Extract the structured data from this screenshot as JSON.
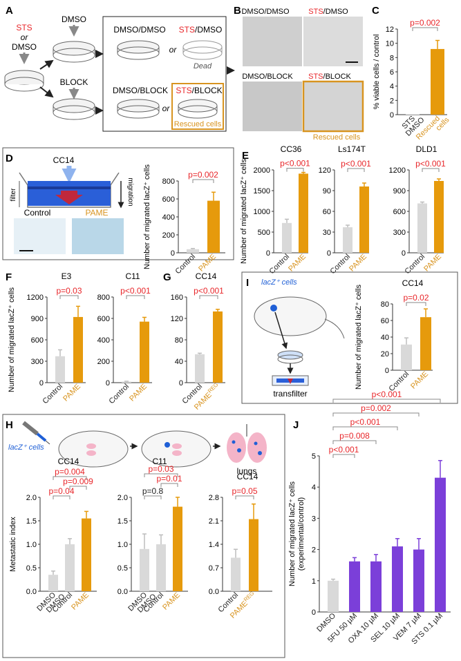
{
  "colors": {
    "control": "#d9d9d9",
    "pame": "#e69a0c",
    "purple": "#7b3fd9",
    "red": "#e8262a",
    "orange": "#d89420",
    "blue": "#1f5fd6",
    "pink": "#f4b4c8"
  },
  "panels": {
    "A": {
      "letter": "A",
      "sts_or_dmso": [
        "STS",
        "or",
        "DMSO"
      ],
      "dmso": "DMSO",
      "block": "BLOCK",
      "dmso_dmso": "DMSO/DMSO",
      "sts_dmso_a": "STS",
      "sts_dmso_b": "/DMSO",
      "dmso_block": "DMSO/BLOCK",
      "sts_block_a": "STS",
      "sts_block_b": "/BLOCK",
      "or": "or",
      "dead": "Dead",
      "rescued": "Rescued cells"
    },
    "B": {
      "letter": "B",
      "dmso_dmso": "DMSO/DMSO",
      "sts_dmso_a": "STS",
      "sts_dmso_b": "/DMSO",
      "dmso_block": "DMSO/BLOCK",
      "sts_block_a": "STS",
      "sts_block_b": "/BLOCK",
      "rescued": "Rescued cells"
    },
    "D": {
      "letter": "D",
      "cc14": "CC14",
      "filter": "filter",
      "migration": "migration",
      "control": "Control",
      "pame": "PAME"
    },
    "F": {
      "letter": "F"
    },
    "G": {
      "letter": "G"
    },
    "E": {
      "letter": "E"
    },
    "I": {
      "letter": "I",
      "cells": "lacZ⁺ cells",
      "transfilter": "transfilter"
    },
    "H": {
      "letter": "H",
      "cells": "lacZ⁺ cells",
      "lungs": "lungs"
    },
    "J": {
      "letter": "J"
    }
  },
  "chart_data": [
    {
      "id": "C",
      "type": "bar",
      "ylabel": "% viable cells / control",
      "ylim": [
        0,
        12
      ],
      "yticks": [
        0,
        2,
        4,
        6,
        8,
        10,
        12
      ],
      "categories": [
        "STS DMSO",
        "Rescued cells"
      ],
      "cat_lines": [
        [
          "STS",
          "DMSO"
        ],
        [
          "Rescued",
          "cells"
        ]
      ],
      "values": [
        0.05,
        9.2
      ],
      "errors": [
        0,
        1.2
      ],
      "colors": [
        "#d9d9d9",
        "#e69a0c"
      ],
      "label_colors": [
        "#222222",
        "#d89420"
      ],
      "comparisons": [
        {
          "a": 0,
          "b": 1,
          "text": "p=0.002"
        }
      ]
    },
    {
      "id": "D",
      "type": "bar",
      "ylabel": "Number of migrated lacZ⁺ cells",
      "ylim": [
        0,
        800
      ],
      "yticks": [
        0,
        200,
        400,
        600,
        800
      ],
      "categories": [
        "Control",
        "PAME"
      ],
      "values": [
        40,
        580
      ],
      "errors": [
        8,
        95
      ],
      "colors": [
        "#d9d9d9",
        "#e69a0c"
      ],
      "label_colors": [
        "#222222",
        "#d89420"
      ],
      "comparisons": [
        {
          "a": 0,
          "b": 1,
          "text": "p=0.002"
        }
      ]
    },
    {
      "id": "E1",
      "type": "bar",
      "title": "CC36",
      "ylabel": "Number of migrated lacZ⁺ cells",
      "ylim": [
        0,
        2000
      ],
      "yticks": [
        0,
        500,
        1000,
        1500,
        2000
      ],
      "categories": [
        "Control",
        "PAME"
      ],
      "values": [
        720,
        1910
      ],
      "errors": [
        90,
        30
      ],
      "colors": [
        "#d9d9d9",
        "#e69a0c"
      ],
      "label_colors": [
        "#222222",
        "#d89420"
      ],
      "comparisons": [
        {
          "a": 0,
          "b": 1,
          "text": "p<0.001"
        }
      ]
    },
    {
      "id": "E2",
      "type": "bar",
      "title": "Ls174T",
      "ylim": [
        0,
        120
      ],
      "yticks": [
        0,
        30,
        60,
        90,
        120
      ],
      "categories": [
        "Control",
        "PAME"
      ],
      "values": [
        37,
        96
      ],
      "errors": [
        3,
        5
      ],
      "colors": [
        "#d9d9d9",
        "#e69a0c"
      ],
      "label_colors": [
        "#222222",
        "#d89420"
      ],
      "comparisons": [
        {
          "a": 0,
          "b": 1,
          "text": "p<0.001"
        }
      ]
    },
    {
      "id": "E3",
      "type": "bar",
      "title": "DLD1",
      "ylim": [
        0,
        1200
      ],
      "yticks": [
        0,
        300,
        600,
        900,
        1200
      ],
      "categories": [
        "Control",
        "PAME"
      ],
      "values": [
        715,
        1040
      ],
      "errors": [
        20,
        30
      ],
      "colors": [
        "#d9d9d9",
        "#e69a0c"
      ],
      "label_colors": [
        "#222222",
        "#d89420"
      ],
      "comparisons": [
        {
          "a": 0,
          "b": 1,
          "text": "p<0.001"
        }
      ]
    },
    {
      "id": "F1",
      "type": "bar",
      "title": "E3",
      "ylabel": "Number of migrated lacZ⁺ cells",
      "ylim": [
        0,
        1200
      ],
      "yticks": [
        0,
        300,
        600,
        900,
        1200
      ],
      "categories": [
        "Control",
        "PAME"
      ],
      "values": [
        370,
        920
      ],
      "errors": [
        90,
        150
      ],
      "colors": [
        "#d9d9d9",
        "#e69a0c"
      ],
      "label_colors": [
        "#222222",
        "#d89420"
      ],
      "comparisons": [
        {
          "a": 0,
          "b": 1,
          "text": "p=0.03"
        }
      ]
    },
    {
      "id": "F2",
      "type": "bar",
      "title": "C11",
      "ylim": [
        0,
        800
      ],
      "yticks": [
        0,
        200,
        400,
        600,
        800
      ],
      "categories": [
        "Control",
        "PAME"
      ],
      "values": [
        10,
        570
      ],
      "errors": [
        3,
        40
      ],
      "colors": [
        "#d9d9d9",
        "#e69a0c"
      ],
      "label_colors": [
        "#222222",
        "#d89420"
      ],
      "comparisons": [
        {
          "a": 0,
          "b": 1,
          "text": "p<0.001"
        }
      ]
    },
    {
      "id": "G",
      "type": "bar",
      "title": "CC14",
      "ylim": [
        0,
        160
      ],
      "yticks": [
        0,
        40,
        80,
        120,
        160
      ],
      "categories": [
        "Control",
        "PAME REG"
      ],
      "cat_lines": [
        [
          "Control"
        ],
        [
          "PAME",
          "REG"
        ]
      ],
      "values": [
        53,
        133
      ],
      "errors": [
        2,
        4
      ],
      "colors": [
        "#d9d9d9",
        "#e69a0c"
      ],
      "label_colors": [
        "#222222",
        "#d89420"
      ],
      "comparisons": [
        {
          "a": 0,
          "b": 1,
          "text": "p<0.001"
        }
      ]
    },
    {
      "id": "I",
      "type": "bar",
      "title": "CC14",
      "ylabel": "Number of migrated lacZ⁺ cells",
      "ylim": [
        0,
        80
      ],
      "yticks": [
        0,
        20,
        40,
        60,
        80
      ],
      "categories": [
        "Control",
        "PAME"
      ],
      "values": [
        31,
        64
      ],
      "errors": [
        8,
        10
      ],
      "colors": [
        "#d9d9d9",
        "#e69a0c"
      ],
      "label_colors": [
        "#222222",
        "#d89420"
      ],
      "comparisons": [
        {
          "a": 0,
          "b": 1,
          "text": "p=0.02"
        }
      ]
    },
    {
      "id": "H1",
      "type": "bar",
      "title": "CC14",
      "ylabel": "Metastatic index",
      "ylim": [
        0,
        2.0
      ],
      "yticks": [
        0,
        0.5,
        1.0,
        1.5,
        2.0
      ],
      "tick_decimals": 1,
      "categories": [
        "DMSO DMSO",
        "Control",
        "PAME"
      ],
      "cat_lines": [
        [
          "DMSO",
          "DMSO"
        ],
        [
          "Control"
        ],
        [
          "PAME"
        ]
      ],
      "values": [
        0.35,
        1.0,
        1.55
      ],
      "errors": [
        0.08,
        0.12,
        0.15
      ],
      "colors": [
        "#d9d9d9",
        "#d9d9d9",
        "#e69a0c"
      ],
      "label_colors": [
        "#222222",
        "#222222",
        "#d89420"
      ],
      "comparisons": [
        {
          "a": 0,
          "b": 1,
          "text": "p=0.04",
          "color": "#e8262a"
        },
        {
          "a": 1,
          "b": 2,
          "text": "p=0.009",
          "color": "#e8262a"
        },
        {
          "a": 0,
          "b": 2,
          "text": "p=0.004",
          "color": "#e8262a"
        }
      ]
    },
    {
      "id": "H2",
      "type": "bar",
      "title": "C11",
      "ylim": [
        0,
        2.0
      ],
      "yticks": [
        0,
        0.5,
        1.0,
        1.5,
        2.0
      ],
      "tick_decimals": 1,
      "categories": [
        "DMSO DMSO",
        "Control",
        "PAME"
      ],
      "cat_lines": [
        [
          "DMSO",
          "DMSO"
        ],
        [
          "Control"
        ],
        [
          "PAME"
        ]
      ],
      "values": [
        0.9,
        1.0,
        1.8
      ],
      "errors": [
        0.32,
        0.2,
        0.2
      ],
      "colors": [
        "#d9d9d9",
        "#d9d9d9",
        "#e69a0c"
      ],
      "label_colors": [
        "#222222",
        "#222222",
        "#d89420"
      ],
      "comparisons": [
        {
          "a": 0,
          "b": 1,
          "text": "p=0.8",
          "color": "#222222"
        },
        {
          "a": 1,
          "b": 2,
          "text": "p=0.01",
          "color": "#e8262a"
        },
        {
          "a": 0,
          "b": 2,
          "text": "p=0.03",
          "color": "#e8262a"
        }
      ]
    },
    {
      "id": "H3",
      "type": "bar",
      "title": "CC14",
      "ylim": [
        0,
        2.8
      ],
      "yticks": [
        0,
        0.7,
        1.4,
        2.1,
        2.8
      ],
      "tick_decimals": 1,
      "categories": [
        "Control",
        "PAME REG"
      ],
      "cat_lines": [
        [
          "Control"
        ],
        [
          "PAME",
          "REG"
        ]
      ],
      "values": [
        1.0,
        2.15
      ],
      "errors": [
        0.25,
        0.45
      ],
      "colors": [
        "#d9d9d9",
        "#e69a0c"
      ],
      "label_colors": [
        "#222222",
        "#d89420"
      ],
      "comparisons": [
        {
          "a": 0,
          "b": 1,
          "text": "p=0.05"
        }
      ]
    },
    {
      "id": "J",
      "type": "bar",
      "ylabel": "Number of migrated lacZ⁺ cells (experimental/control)",
      "ylim": [
        0,
        5
      ],
      "yticks": [
        0,
        1,
        2,
        3,
        4,
        5
      ],
      "categories": [
        "DMSO",
        "5FU 50 µM",
        "OXA 10 µM",
        "SEL 10 µM",
        "VEM 7 µM",
        "STS 0.1 µM"
      ],
      "values": [
        1.0,
        1.62,
        1.62,
        2.1,
        2.0,
        4.3
      ],
      "errors": [
        0.05,
        0.12,
        0.22,
        0.25,
        0.35,
        0.55
      ],
      "colors": [
        "#d9d9d9",
        "#7b3fd9",
        "#7b3fd9",
        "#7b3fd9",
        "#7b3fd9",
        "#7b3fd9"
      ],
      "label_colors": [
        "#222222",
        "#222222",
        "#222222",
        "#222222",
        "#222222",
        "#222222"
      ],
      "comparisons": [
        {
          "a": 0,
          "b": 1,
          "text": "p<0.001"
        },
        {
          "a": 0,
          "b": 2,
          "text": "p=0.008"
        },
        {
          "a": 0,
          "b": 3,
          "text": "p<0.001"
        },
        {
          "a": 0,
          "b": 4,
          "text": "p=0.002"
        },
        {
          "a": 0,
          "b": 5,
          "text": "p<0.001"
        }
      ]
    }
  ]
}
